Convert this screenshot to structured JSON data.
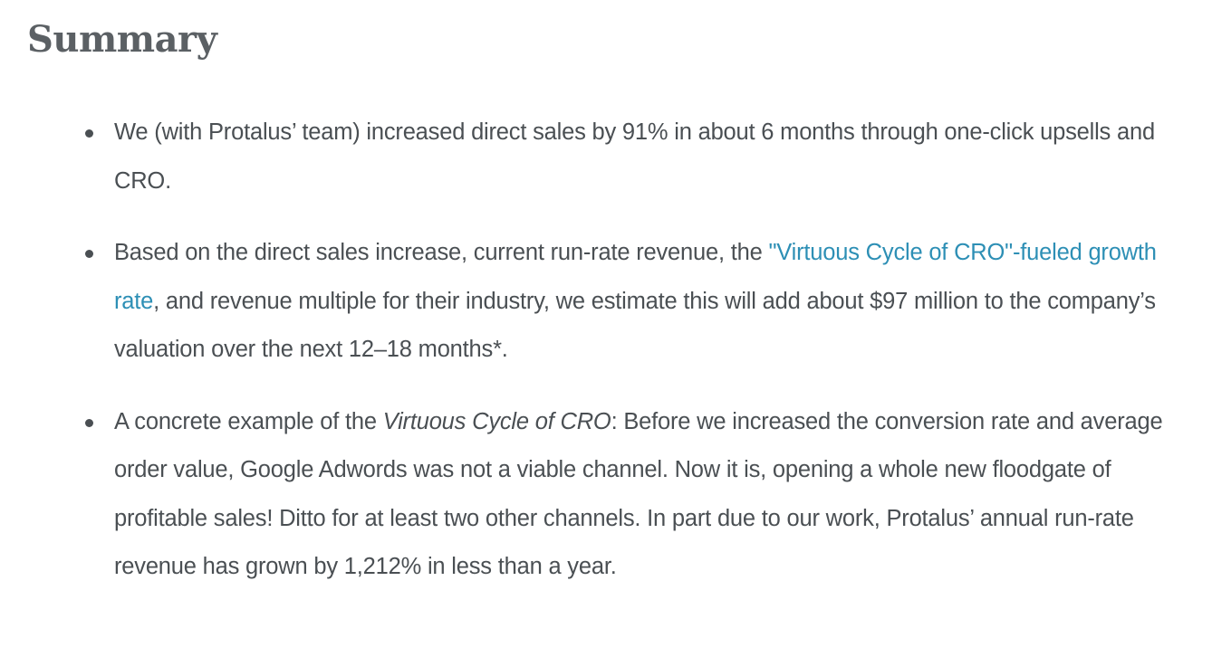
{
  "summary": {
    "title": "Summary",
    "items": [
      {
        "text": "We (with Protalus’ team) increased direct sales by 91% in about 6 months through one-click upsells and CRO."
      },
      {
        "before_link": "Based on the direct sales increase, current run-rate revenue, the ",
        "link_text": "\"Virtuous Cycle of CRO\"-fueled growth rate",
        "after_link": ", and revenue multiple for their industry, we estimate this will add about $97 million to the company’s valuation over the next 12–18 months*."
      },
      {
        "before_italic": "A concrete example of the ",
        "italic_text": "Virtuous Cycle of CRO",
        "after_italic": ": Before we increased the conversion rate and average order value, Google Adwords was not a viable channel. Now it is, opening a whole new floodgate of profitable sales! Ditto for at least two other channels. In part due to our work, Protalus’ annual run-rate revenue has grown by 1,212% in less than a year."
      }
    ]
  }
}
